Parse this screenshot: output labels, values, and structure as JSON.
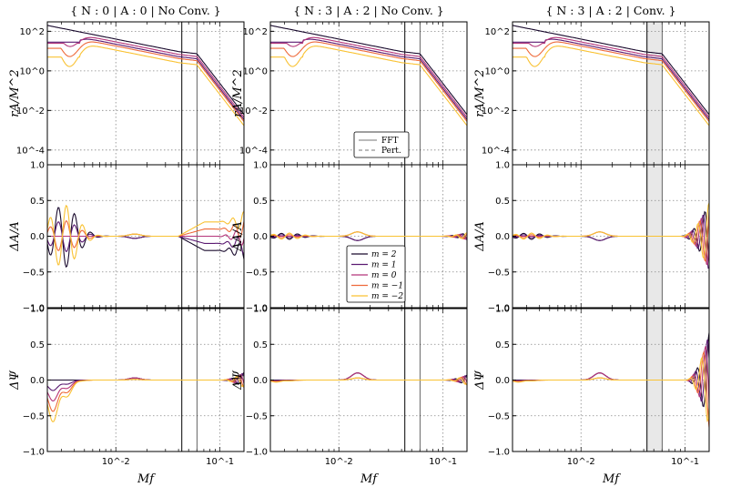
{
  "chart_data": {
    "type": "line",
    "xscale": "log",
    "xlabel": "Mf",
    "xlim": [
      0.0022,
      0.17
    ],
    "x_tick_labels": [
      "10^-2",
      "10^-1"
    ],
    "rows": [
      {
        "key": "amp",
        "ylabel": "rA/M^2",
        "yscale": "log",
        "ylim": [
          1.8e-05,
          300
        ],
        "yticks": [
          100,
          1,
          0.01,
          0.0001
        ],
        "ytick_labels": [
          "10^2",
          "10^0",
          "10^-2",
          "10^-4"
        ]
      },
      {
        "key": "dA",
        "ylabel": "ΔA/A",
        "yscale": "linear",
        "ylim": [
          -1.0,
          1.0
        ],
        "yticks": [
          1.0,
          0.5,
          0.0,
          -0.5,
          -1.0
        ],
        "ytick_labels": [
          "1.0",
          "0.5",
          "0.0",
          "−0.5",
          "−1.0"
        ]
      },
      {
        "key": "dpsi",
        "ylabel": "ΔΨ",
        "yscale": "linear",
        "ylim": [
          -1.0,
          1.0
        ],
        "yticks": [
          1.0,
          0.5,
          0.0,
          -0.5,
          -1.0
        ],
        "ytick_labels": [
          "1.0",
          "0.5",
          "0.0",
          "−0.5",
          "−1.0"
        ]
      }
    ],
    "panels": [
      {
        "title": "{ N : 0 | A : 0 | No Conv. }",
        "vlines": [
          0.043,
          0.06
        ],
        "shaded": null,
        "dA_scale": 1.0,
        "dpsi_scale": 1.0,
        "dA_tail": 0.25,
        "dpsi_tail": 0.15,
        "dA_late_offset": 0.2
      },
      {
        "title": "{ N : 3 | A : 2 | No Conv. }",
        "vlines": [
          0.043,
          0.06
        ],
        "shaded": null,
        "dA_scale": 0.1,
        "dpsi_scale": 0.05,
        "dA_tail": 0.08,
        "dpsi_tail": 0.1,
        "dA_late_offset": 0.0
      },
      {
        "title": "{ N : 3 | A : 2 | Conv. }",
        "vlines": [
          0.043,
          0.06
        ],
        "shaded": [
          0.043,
          0.06
        ],
        "dA_scale": 0.1,
        "dpsi_scale": 0.05,
        "dA_tail": 0.8,
        "dpsi_tail": 0.95,
        "dA_late_offset": 0.0
      }
    ],
    "series": [
      {
        "name": "m = 2",
        "color": "#1a0b2e",
        "amp_scale": 1.8,
        "low_dip": 0.0
      },
      {
        "name": "m = 1",
        "color": "#5b1a72",
        "amp_scale": 1.0,
        "low_dip": 0.35
      },
      {
        "name": "m = 0",
        "color": "#b5367a",
        "amp_scale": 1.3,
        "low_dip": 0.7
      },
      {
        "name": "m = −1",
        "color": "#ee6a3a",
        "amp_scale": 0.8,
        "low_dip": 1.0
      },
      {
        "name": "m = −2",
        "color": "#f9c233",
        "amp_scale": 0.5,
        "low_dip": 1.3
      }
    ],
    "line_styles": [
      {
        "name": "FFT",
        "dash": "none"
      },
      {
        "name": "Pert.",
        "dash": "4,3"
      }
    ],
    "grid": true,
    "legend_lines": "middle panel, top row, lower-center",
    "legend_modes": "middle panel, middle row, lower-center"
  }
}
